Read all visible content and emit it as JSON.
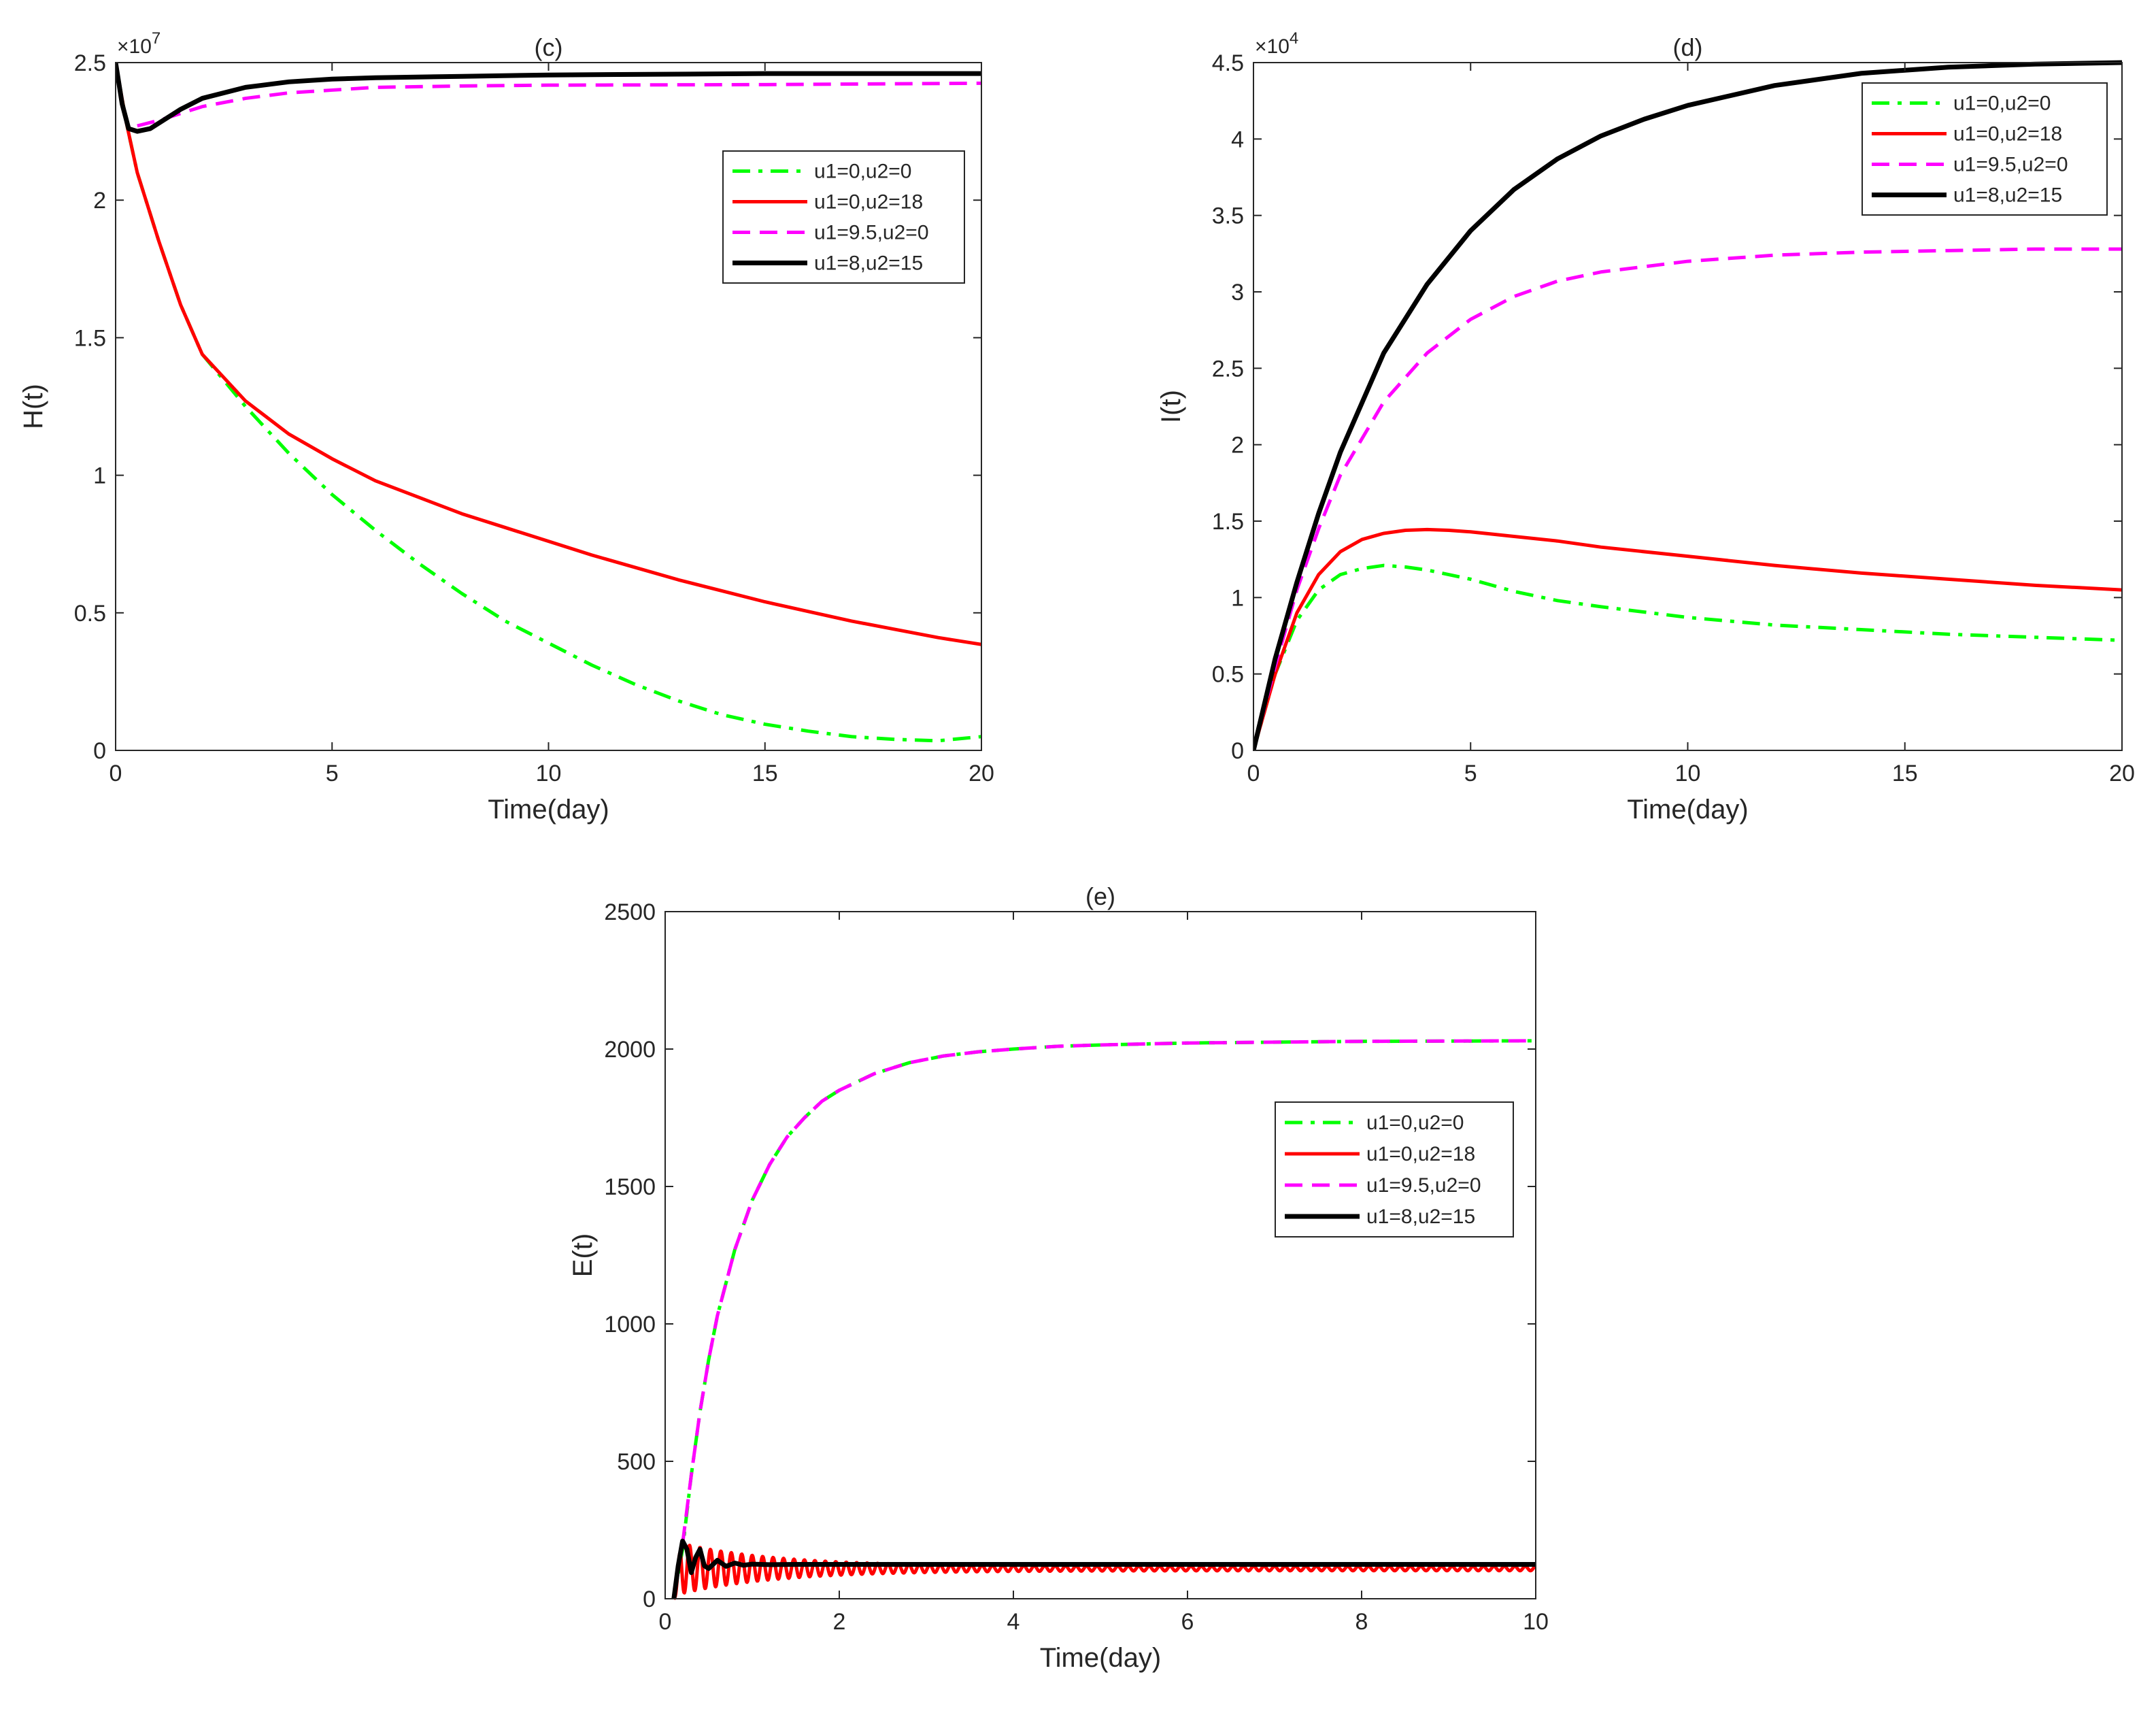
{
  "chart_data": [
    {
      "type": "line",
      "title": "(c)",
      "xlabel": "Time(day)",
      "ylabel": "H(t)",
      "exponent_label": "×10",
      "exponent_power": "7",
      "xlim": [
        0,
        20
      ],
      "ylim": [
        0,
        2.5
      ],
      "xticks": [
        0,
        5,
        10,
        15,
        20
      ],
      "yticks": [
        0,
        0.5,
        1,
        1.5,
        2,
        2.5
      ],
      "legend_position": "upper-right",
      "series": [
        {
          "name": "u1=0,u2=0",
          "color": "#00ff00",
          "dash": "dashdot",
          "x": [
            0,
            0.25,
            0.5,
            1,
            1.5,
            2,
            3,
            4,
            5,
            6,
            7,
            8,
            9,
            10,
            11,
            12,
            13,
            14,
            15,
            16,
            17,
            18,
            19,
            20
          ],
          "y": [
            2.5,
            2.28,
            2.1,
            1.85,
            1.62,
            1.44,
            1.25,
            1.08,
            0.93,
            0.8,
            0.68,
            0.57,
            0.47,
            0.39,
            0.31,
            0.24,
            0.18,
            0.13,
            0.095,
            0.07,
            0.05,
            0.04,
            0.035,
            0.05
          ]
        },
        {
          "name": "u1=0,u2=18",
          "color": "#ff0000",
          "dash": "solid",
          "x": [
            0,
            0.25,
            0.5,
            1,
            1.5,
            2,
            3,
            4,
            5,
            6,
            7,
            8,
            9,
            10,
            11,
            12,
            13,
            14,
            15,
            16,
            17,
            18,
            19,
            20
          ],
          "y": [
            2.5,
            2.28,
            2.1,
            1.85,
            1.62,
            1.44,
            1.27,
            1.15,
            1.06,
            0.98,
            0.92,
            0.86,
            0.81,
            0.76,
            0.71,
            0.665,
            0.62,
            0.58,
            0.54,
            0.505,
            0.47,
            0.44,
            0.41,
            0.385
          ]
        },
        {
          "name": "u1=9.5,u2=0",
          "color": "#ff00ff",
          "dash": "dashed",
          "x": [
            0.5,
            1,
            2,
            3,
            4,
            5,
            6,
            8,
            10,
            15,
            20
          ],
          "y": [
            2.27,
            2.29,
            2.34,
            2.37,
            2.39,
            2.4,
            2.41,
            2.415,
            2.418,
            2.42,
            2.425
          ]
        },
        {
          "name": "u1=8,u2=15",
          "color": "#000000",
          "dash": "solid",
          "x": [
            0,
            0.15,
            0.3,
            0.5,
            0.8,
            1,
            1.5,
            2,
            3,
            4,
            5,
            6,
            8,
            10,
            15,
            20
          ],
          "y": [
            2.5,
            2.35,
            2.26,
            2.25,
            2.26,
            2.28,
            2.33,
            2.37,
            2.41,
            2.43,
            2.44,
            2.445,
            2.45,
            2.455,
            2.46,
            2.46
          ]
        }
      ]
    },
    {
      "type": "line",
      "title": "(d)",
      "xlabel": "Time(day)",
      "ylabel": "I(t)",
      "exponent_label": "×10",
      "exponent_power": "4",
      "xlim": [
        0,
        20
      ],
      "ylim": [
        0,
        4.5
      ],
      "xticks": [
        0,
        5,
        10,
        15,
        20
      ],
      "yticks": [
        0,
        0.5,
        1,
        1.5,
        2,
        2.5,
        3,
        3.5,
        4,
        4.5
      ],
      "legend_position": "top-right",
      "series": [
        {
          "name": "u1=0,u2=0",
          "color": "#00ff00",
          "dash": "dashdot",
          "x": [
            0,
            0.5,
            1,
            1.5,
            2,
            2.5,
            3,
            3.5,
            4,
            5,
            6,
            7,
            8,
            10,
            12,
            14,
            16,
            18,
            20
          ],
          "y": [
            0,
            0.5,
            0.85,
            1.05,
            1.15,
            1.19,
            1.21,
            1.2,
            1.18,
            1.12,
            1.04,
            0.98,
            0.94,
            0.87,
            0.82,
            0.79,
            0.76,
            0.74,
            0.72
          ]
        },
        {
          "name": "u1=0,u2=18",
          "color": "#ff0000",
          "dash": "solid",
          "x": [
            0,
            0.5,
            1,
            1.5,
            2,
            2.5,
            3,
            3.5,
            4,
            4.5,
            5,
            6,
            7,
            8,
            10,
            12,
            14,
            16,
            18,
            20
          ],
          "y": [
            0,
            0.5,
            0.9,
            1.15,
            1.3,
            1.38,
            1.42,
            1.44,
            1.445,
            1.44,
            1.43,
            1.4,
            1.37,
            1.33,
            1.27,
            1.21,
            1.16,
            1.12,
            1.08,
            1.05
          ]
        },
        {
          "name": "u1=9.5,u2=0",
          "color": "#ff00ff",
          "dash": "dashed",
          "x": [
            0,
            0.5,
            1,
            1.5,
            2,
            3,
            4,
            5,
            6,
            7,
            8,
            10,
            12,
            14,
            16,
            18,
            20
          ],
          "y": [
            0,
            0.55,
            1.05,
            1.45,
            1.8,
            2.28,
            2.6,
            2.82,
            2.97,
            3.07,
            3.13,
            3.2,
            3.24,
            3.26,
            3.27,
            3.28,
            3.28
          ]
        },
        {
          "name": "u1=8,u2=15",
          "color": "#000000",
          "dash": "solid",
          "x": [
            0,
            0.5,
            1,
            1.5,
            2,
            3,
            4,
            5,
            6,
            7,
            8,
            9,
            10,
            12,
            14,
            16,
            18,
            20
          ],
          "y": [
            0,
            0.6,
            1.1,
            1.55,
            1.95,
            2.6,
            3.05,
            3.4,
            3.67,
            3.87,
            4.02,
            4.13,
            4.22,
            4.35,
            4.43,
            4.47,
            4.49,
            4.5
          ]
        }
      ]
    },
    {
      "type": "line",
      "title": "(e)",
      "xlabel": "Time(day)",
      "ylabel": "E(t)",
      "exponent_label": "",
      "exponent_power": "",
      "xlim": [
        0,
        10
      ],
      "ylim": [
        0,
        2500
      ],
      "xticks": [
        0,
        2,
        4,
        6,
        8,
        10
      ],
      "yticks": [
        0,
        500,
        1000,
        1500,
        2000,
        2500
      ],
      "legend_position": "right",
      "series": [
        {
          "name": "u1=0,u2=0",
          "color": "#00ff00",
          "dash": "dashdot",
          "x": [
            0.1,
            0.2,
            0.3,
            0.4,
            0.5,
            0.6,
            0.8,
            1,
            1.2,
            1.4,
            1.6,
            1.8,
            2,
            2.4,
            2.8,
            3.2,
            3.6,
            4,
            4.5,
            5,
            6,
            7,
            8,
            9,
            10
          ],
          "y": [
            0,
            180,
            450,
            680,
            870,
            1030,
            1270,
            1450,
            1580,
            1680,
            1750,
            1810,
            1850,
            1910,
            1950,
            1975,
            1990,
            2000,
            2010,
            2015,
            2022,
            2025,
            2028,
            2029,
            2030
          ]
        },
        {
          "name": "u1=0,u2=18",
          "color": "#ff0000",
          "dash": "solid",
          "oscillating": true,
          "start": 0.1,
          "level": 110,
          "amplitude": 90,
          "period": 0.12,
          "decay": 0.9
        },
        {
          "name": "u1=9.5,u2=0",
          "color": "#ff00ff",
          "dash": "dashed",
          "x": [
            0.2,
            0.3,
            0.4,
            0.5,
            0.6,
            0.8,
            1,
            1.2,
            1.4,
            1.6,
            1.8,
            2,
            2.4,
            2.8,
            3.2,
            3.6,
            4,
            4.5,
            5,
            6,
            7,
            8,
            9,
            10
          ],
          "y": [
            200,
            450,
            680,
            870,
            1030,
            1270,
            1450,
            1580,
            1680,
            1750,
            1810,
            1850,
            1910,
            1950,
            1975,
            1990,
            2000,
            2010,
            2015,
            2022,
            2025,
            2028,
            2029,
            2030
          ]
        },
        {
          "name": "u1=8,u2=15",
          "color": "#000000",
          "dash": "solid",
          "x": [
            0.1,
            0.15,
            0.2,
            0.25,
            0.3,
            0.35,
            0.4,
            0.45,
            0.5,
            0.6,
            0.7,
            0.8,
            0.9,
            1.0,
            1.2,
            1.5,
            2,
            3,
            4,
            6,
            8,
            10
          ],
          "y": [
            0,
            120,
            210,
            180,
            95,
            150,
            180,
            120,
            110,
            140,
            118,
            130,
            122,
            126,
            124,
            125,
            125,
            125,
            125,
            125,
            125,
            125
          ]
        }
      ]
    }
  ]
}
